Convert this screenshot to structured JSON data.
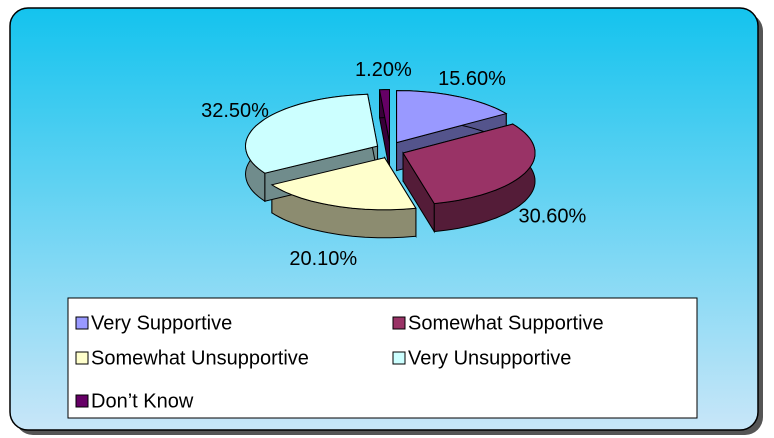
{
  "chart_data": {
    "type": "pie",
    "categories": [
      "Very Supportive",
      "Somewhat Supportive",
      "Somewhat Unsupportive",
      "Very Unsupportive",
      "Don’t Know"
    ],
    "values": [
      15.6,
      30.6,
      20.1,
      32.5,
      1.2
    ],
    "value_labels": [
      "15.60%",
      "30.60%",
      "20.10%",
      "32.50%",
      "1.20%"
    ],
    "colors": [
      "#9999ff",
      "#993366",
      "#ffffcc",
      "#ccffff",
      "#660066"
    ],
    "legend": "bottom"
  }
}
